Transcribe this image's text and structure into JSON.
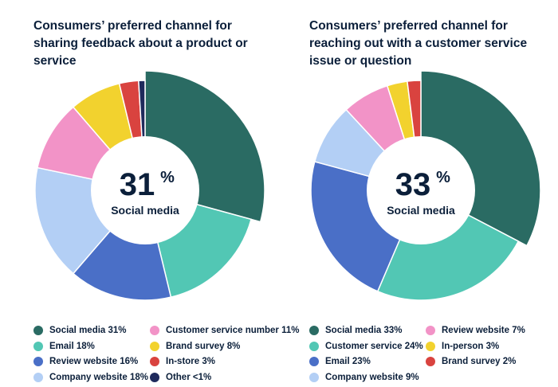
{
  "chart_data": [
    {
      "type": "pie",
      "title": "Consumers’ preferred channel for sharing feedback about a product or service",
      "center": {
        "value": "31",
        "unit": "%",
        "label": "Social media"
      },
      "slices": [
        {
          "name": "Social media",
          "value": 31,
          "legend": "Social media 31%",
          "color": "#2a6b63"
        },
        {
          "name": "Email",
          "value": 18,
          "legend": "Email 18%",
          "color": "#52c7b4"
        },
        {
          "name": "Review website",
          "value": 16,
          "legend": "Review website 16%",
          "color": "#4a6fc7"
        },
        {
          "name": "Company website",
          "value": 18,
          "legend": "Company website 18%",
          "color": "#b3cff5"
        },
        {
          "name": "Customer service number",
          "value": 11,
          "legend": "Customer service number 11%",
          "color": "#f293c7"
        },
        {
          "name": "Brand survey",
          "value": 8,
          "legend": "Brand survey 8%",
          "color": "#f2d22e"
        },
        {
          "name": "In-store",
          "value": 3,
          "legend": "In-store 3%",
          "color": "#d9433f"
        },
        {
          "name": "Other",
          "value": 1,
          "legend": "Other <1%",
          "color": "#1f2a5c"
        }
      ]
    },
    {
      "type": "pie",
      "title": "Consumers’ preferred channel for reaching out with a customer service issue or question",
      "center": {
        "value": "33",
        "unit": "%",
        "label": "Social media"
      },
      "slices": [
        {
          "name": "Social media",
          "value": 33,
          "legend": "Social media 33%",
          "color": "#2a6b63"
        },
        {
          "name": "Customer service",
          "value": 24,
          "legend": "Customer service 24%",
          "color": "#52c7b4"
        },
        {
          "name": "Email",
          "value": 23,
          "legend": "Email 23%",
          "color": "#4a6fc7"
        },
        {
          "name": "Company website",
          "value": 9,
          "legend": "Company website 9%",
          "color": "#b3cff5"
        },
        {
          "name": "Review website",
          "value": 7,
          "legend": "Review website 7%",
          "color": "#f293c7"
        },
        {
          "name": "In-person",
          "value": 3,
          "legend": "In-person 3%",
          "color": "#f2d22e"
        },
        {
          "name": "Brand survey",
          "value": 2,
          "legend": "Brand survey 2%",
          "color": "#d9433f"
        }
      ]
    }
  ]
}
